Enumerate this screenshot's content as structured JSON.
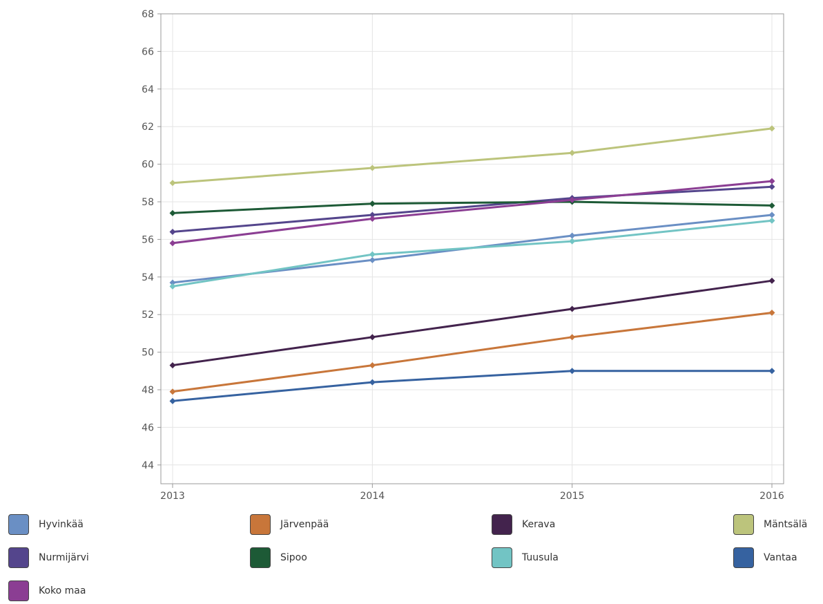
{
  "chart_data": {
    "type": "line",
    "title": "",
    "xlabel": "",
    "ylabel": "",
    "x": [
      "2013",
      "2014",
      "2015",
      "2016"
    ],
    "ylim": [
      43,
      68
    ],
    "yticks": [
      44,
      46,
      48,
      50,
      52,
      54,
      56,
      58,
      60,
      62,
      64,
      66,
      68
    ],
    "grid": true,
    "legend_position": "bottom",
    "series": [
      {
        "name": "Hyvinkää",
        "color": "#6a8fc4",
        "values": [
          53.7,
          54.9,
          56.2,
          57.3
        ]
      },
      {
        "name": "Järvenpää",
        "color": "#c8763a",
        "values": [
          47.9,
          49.3,
          50.8,
          52.1
        ]
      },
      {
        "name": "Kerava",
        "color": "#43234d",
        "values": [
          49.3,
          50.8,
          52.3,
          53.8
        ]
      },
      {
        "name": "Mäntsälä",
        "color": "#bcc47c",
        "values": [
          59.0,
          59.8,
          60.6,
          61.9
        ]
      },
      {
        "name": "Nurmijärvi",
        "color": "#54458c",
        "values": [
          56.4,
          57.3,
          58.2,
          58.8
        ]
      },
      {
        "name": "Sipoo",
        "color": "#1d5a36",
        "values": [
          57.4,
          57.9,
          58.0,
          57.8
        ]
      },
      {
        "name": "Tuusula",
        "color": "#72c4c4",
        "values": [
          53.5,
          55.2,
          55.9,
          57.0
        ]
      },
      {
        "name": "Vantaa",
        "color": "#3662a0",
        "values": [
          47.4,
          48.4,
          49.0,
          49.0
        ]
      },
      {
        "name": "Koko maa",
        "color": "#8b3e93",
        "values": [
          55.8,
          57.1,
          58.1,
          59.1
        ]
      }
    ]
  }
}
